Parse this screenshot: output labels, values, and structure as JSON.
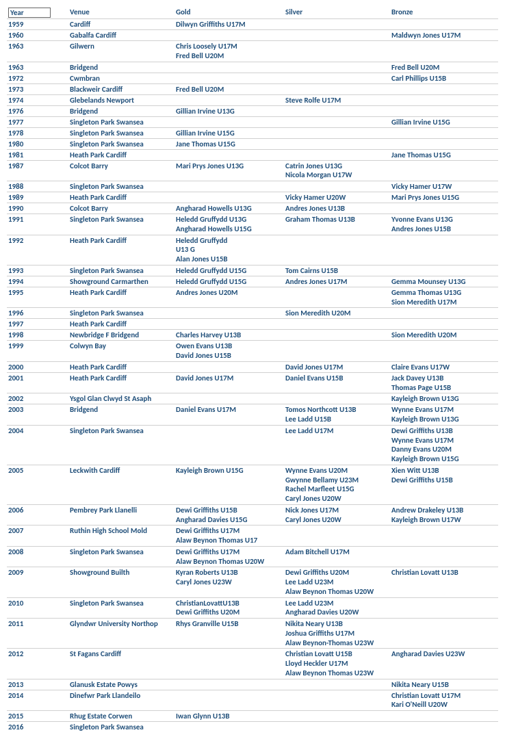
{
  "headers": {
    "year": "Year",
    "venue": "Venue",
    "gold": "Gold",
    "silver": "Silver",
    "bronze": "Bronze"
  },
  "rows": [
    {
      "year": "1959",
      "venue": "Cardiff",
      "gold": [
        "Dilwyn Griffiths U17M"
      ],
      "silver": [],
      "bronze": []
    },
    {
      "year": "1960",
      "venue": "Gabalfa Cardiff",
      "gold": [],
      "silver": [],
      "bronze": [
        "Maldwyn Jones U17M"
      ]
    },
    {
      "year": "1963",
      "venue": "Gilwern",
      "gold": [
        "Chris Loosely U17M",
        "Fred Bell U20M"
      ],
      "silver": [],
      "bronze": []
    },
    {
      "year": "1963",
      "venue": "Bridgend",
      "gold": [],
      "silver": [],
      "bronze": [
        "Fred Bell U20M"
      ]
    },
    {
      "year": "1972",
      "venue": "Cwmbran",
      "gold": [],
      "silver": [],
      "bronze": [
        "Carl Phillips U15B"
      ]
    },
    {
      "year": "1973",
      "venue": "Blackweir Cardiff",
      "gold": [
        "Fred Bell U20M"
      ],
      "silver": [],
      "bronze": []
    },
    {
      "year": "1974",
      "venue": "Glebelands Newport",
      "gold": [],
      "silver": [
        "Steve Rolfe U17M"
      ],
      "bronze": []
    },
    {
      "year": "1976",
      "venue": "Bridgend",
      "gold": [
        "Gillian Irvine U13G"
      ],
      "silver": [],
      "bronze": []
    },
    {
      "year": "1977",
      "venue": "Singleton Park Swansea",
      "gold": [],
      "silver": [],
      "bronze": [
        "Gillian Irvine U15G"
      ]
    },
    {
      "year": "1978",
      "venue": "Singleton Park Swansea",
      "gold": [
        "Gillian Irvine U15G"
      ],
      "silver": [],
      "bronze": []
    },
    {
      "year": "1980",
      "venue": "Singleton Park Swansea",
      "gold": [
        "Jane Thomas U15G"
      ],
      "silver": [],
      "bronze": []
    },
    {
      "year": "1981",
      "venue": "Heath Park Cardiff",
      "gold": [],
      "silver": [],
      "bronze": [
        "Jane Thomas U15G"
      ]
    },
    {
      "year": "1987",
      "venue": "Colcot Barry",
      "gold": [
        "Mari Prys Jones U13G"
      ],
      "silver": [
        "Catrin Jones U13G",
        "Nicola Morgan U17W"
      ],
      "bronze": []
    },
    {
      "year": "1988",
      "venue": "Singleton Park Swansea",
      "gold": [],
      "silver": [],
      "bronze": [
        "Vicky Hamer U17W"
      ]
    },
    {
      "year": "1989",
      "venue": "Heath Park Cardiff",
      "gold": [],
      "silver": [
        "Vicky Hamer U20W"
      ],
      "bronze": [
        "Mari Prys Jones U15G"
      ]
    },
    {
      "year": "1990",
      "venue": "Colcot Barry",
      "gold": [
        "Angharad Howells U13G"
      ],
      "silver": [
        "Andres Jones U13B"
      ],
      "bronze": []
    },
    {
      "year": "1991",
      "venue": "Singleton Park Swansea",
      "gold": [
        "Heledd Gruffydd U13G",
        "Angharad Howells U15G"
      ],
      "silver": [
        "Graham Thomas U13B"
      ],
      "bronze": [
        "Yvonne Evans U13G",
        "Andres Jones U15B"
      ]
    },
    {
      "year": "1992",
      "venue": "Heath Park Cardiff",
      "gold": [
        "Heledd Gruffydd",
        "U13 G",
        "Alan Jones U15B"
      ],
      "silver": [],
      "bronze": []
    },
    {
      "year": "1993",
      "venue": "Singleton Park Swansea",
      "gold": [
        "Heledd Gruffydd U15G"
      ],
      "silver": [
        "Tom Cairns U15B"
      ],
      "bronze": []
    },
    {
      "year": "1994",
      "venue": "Showground Carmarthen",
      "gold": [
        "Heledd Gruffydd U15G"
      ],
      "silver": [
        "Andres Jones U17M"
      ],
      "bronze": [
        "Gemma Mounsey U13G"
      ]
    },
    {
      "year": "1995",
      "venue": "Heath Park Cardiff",
      "gold": [
        "Andres Jones U20M"
      ],
      "silver": [],
      "bronze": [
        "Gemma Thomas U13G",
        "Sion Meredith U17M"
      ]
    },
    {
      "year": "1996",
      "venue": "Singleton Park Swansea",
      "gold": [],
      "silver": [
        "Sion Meredith U20M"
      ],
      "bronze": []
    },
    {
      "year": "1997",
      "venue": "Heath Park Cardiff",
      "gold": [],
      "silver": [],
      "bronze": []
    },
    {
      "year": "1998",
      "venue": "Newbridge F Bridgend",
      "gold": [
        "Charles Harvey U13B"
      ],
      "silver": [],
      "bronze": [
        "Sion Meredith U20M"
      ]
    },
    {
      "year": "1999",
      "venue": "Colwyn Bay",
      "gold": [
        "Owen Evans U13B",
        "David Jones U15B"
      ],
      "silver": [],
      "bronze": []
    },
    {
      "year": "2000",
      "venue": "Heath Park Cardiff",
      "gold": [],
      "silver": [
        "David Jones U17M"
      ],
      "bronze": [
        "Claire Evans U17W"
      ]
    },
    {
      "year": "2001",
      "venue": "Heath Park Cardiff",
      "gold": [
        "David Jones U17M"
      ],
      "silver": [
        "Daniel Evans U15B"
      ],
      "bronze": [
        "Jack Davey U13B",
        "Thomas Page U15B"
      ]
    },
    {
      "year": "2002",
      "venue": "Ysgol Glan Clwyd St Asaph",
      "gold": [],
      "silver": [],
      "bronze": [
        "Kayleigh Brown U13G"
      ]
    },
    {
      "year": "2003",
      "venue": "Bridgend",
      "gold": [
        "Daniel Evans U17M"
      ],
      "silver": [
        "Tomos Northcott U13B",
        "Lee Ladd U15B"
      ],
      "bronze": [
        "Wynne Evans U17M",
        "Kayleigh Brown U13G"
      ]
    },
    {
      "year": "2004",
      "venue": "Singleton Park Swansea",
      "gold": [],
      "silver": [
        "Lee Ladd U17M"
      ],
      "bronze": [
        "Dewi Griffiths U13B",
        "Wynne Evans U17M",
        "Danny Evans U20M",
        "Kayleigh Brown U15G"
      ]
    },
    {
      "year": "2005",
      "venue": "Leckwith Cardiff",
      "gold": [
        "Kayleigh Brown U15G"
      ],
      "silver": [
        "Wynne Evans U20M",
        "Gwynne Bellamy U23M",
        "Rachel Marfleet U15G",
        "Caryl Jones U20W"
      ],
      "bronze": [
        "Xien Witt U13B",
        "Dewi Griffiths U15B"
      ]
    },
    {
      "year": "2006",
      "venue": "Pembrey Park Llanelli",
      "gold": [
        "Dewi Griffiths U15B",
        "Angharad Davies U15G"
      ],
      "silver": [
        "Nick Jones U17M",
        "Caryl Jones U20W"
      ],
      "bronze": [
        "Andrew Drakeley U13B",
        "Kayleigh Brown U17W"
      ]
    },
    {
      "year": "2007",
      "venue": "Ruthin High School Mold",
      "gold": [
        "Dewi Griffiths U17M",
        "Alaw Beynon Thomas U17"
      ],
      "silver": [],
      "bronze": []
    },
    {
      "year": "2008",
      "venue": "Singleton Park Swansea",
      "gold": [
        "Dewi Griffiths U17M",
        "Alaw Beynon Thomas U20W"
      ],
      "silver": [
        "Adam Bitchell U17M"
      ],
      "bronze": []
    },
    {
      "year": "2009",
      "venue": "Showground Builth",
      "gold": [
        "Kyran Roberts U13B",
        "Caryl Jones U23W"
      ],
      "silver": [
        "Dewi Griffiths U20M",
        "Lee Ladd U23M",
        "Alaw Beynon Thomas U20W"
      ],
      "bronze": [
        "Christian Lovatt U13B"
      ]
    },
    {
      "year": "2010",
      "venue": "Singleton Park Swansea",
      "gold": [
        "ChristianLovattU13B",
        "Dewi Griffiths U20M"
      ],
      "silver": [
        "Lee Ladd U23M",
        "Angharad Davies U20W"
      ],
      "bronze": []
    },
    {
      "year": "2011",
      "venue": "Glyndwr University Northop",
      "gold": [
        "Rhys Granville U15B"
      ],
      "silver": [
        "Nikita Neary U13B",
        "Joshua Griffiths U17M",
        "Alaw Beynon-Thomas U23W"
      ],
      "bronze": []
    },
    {
      "year": "2012",
      "venue": "St Fagans Cardiff",
      "gold": [],
      "silver": [
        "Christian Lovatt U15B",
        "Lloyd Heckler U17M",
        "Alaw Beynon Thomas U23W"
      ],
      "bronze": [
        "Angharad Davies U23W"
      ]
    },
    {
      "year": "2013",
      "venue": "Glanusk Estate Powys",
      "gold": [],
      "silver": [],
      "bronze": [
        "Nikita Neary U15B"
      ]
    },
    {
      "year": "2014",
      "venue": "Dinefwr Park Llandeilo",
      "gold": [],
      "silver": [],
      "bronze": [
        "Christian Lovatt U17M",
        "Kari O'Neill U20W"
      ]
    },
    {
      "year": "2015",
      "venue": "Rhug Estate Corwen",
      "gold": [
        "Iwan Glynn U13B"
      ],
      "silver": [],
      "bronze": []
    },
    {
      "year": "2016",
      "venue": "Singleton Park Swansea",
      "gold": [],
      "silver": [],
      "bronze": []
    }
  ]
}
